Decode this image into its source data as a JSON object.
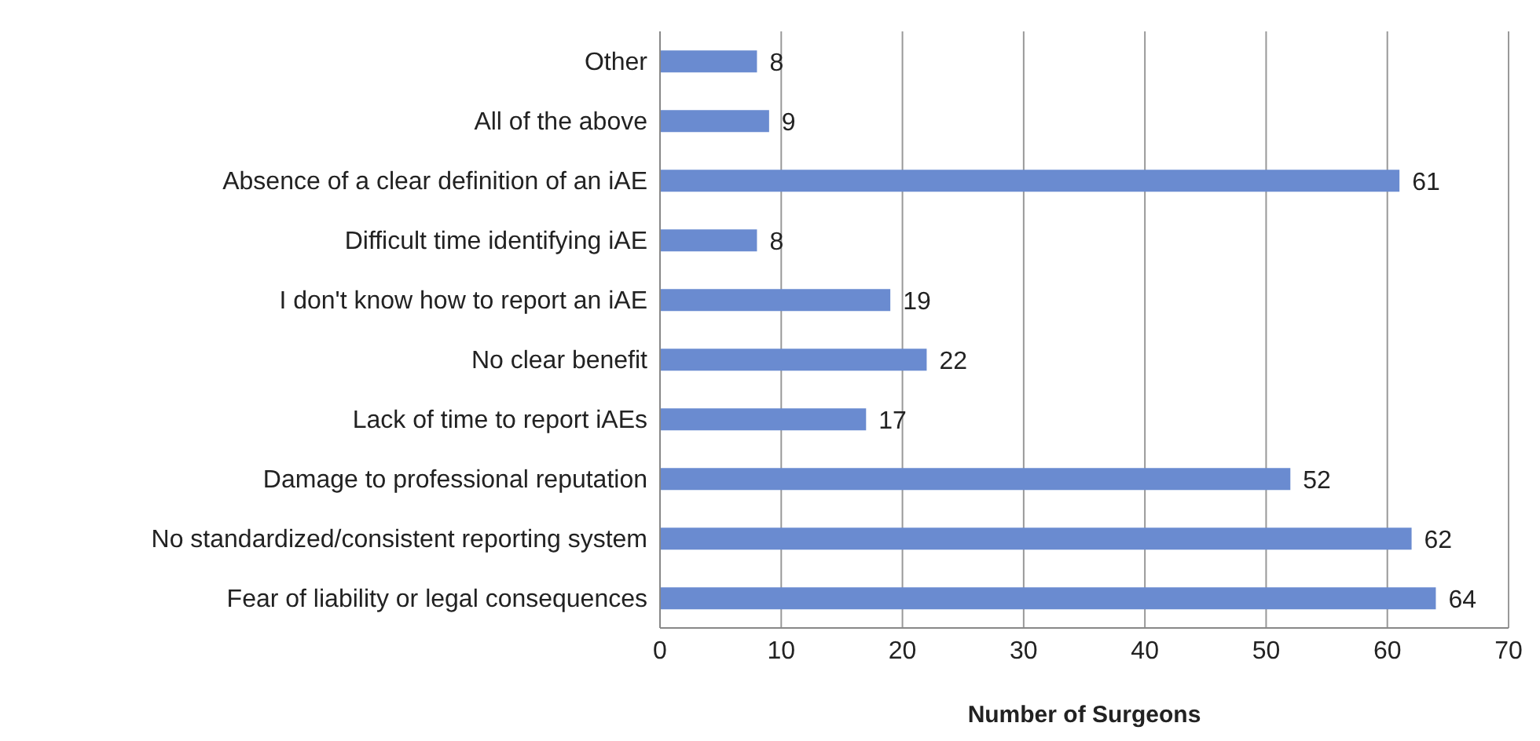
{
  "chart_data": {
    "type": "bar",
    "orientation": "horizontal",
    "xlabel": "Number of Surgeons",
    "categories": [
      "Other",
      "All of the above",
      "Absence of a clear definition of an iAE",
      "Difficult time identifying iAE",
      "I don't know how to report an iAE",
      "No clear benefit",
      "Lack of time to report iAEs",
      "Damage to professional reputation",
      "No standardized/consistent reporting system",
      "Fear of liability or legal consequences"
    ],
    "values": [
      8,
      9,
      61,
      8,
      19,
      22,
      17,
      52,
      62,
      64
    ],
    "color": "#6a8bd0",
    "data_labels": true,
    "grid": "x",
    "xlim": [
      0,
      70
    ],
    "xticks": [
      0,
      10,
      20,
      30,
      40,
      50,
      60,
      70
    ],
    "legend": false
  }
}
